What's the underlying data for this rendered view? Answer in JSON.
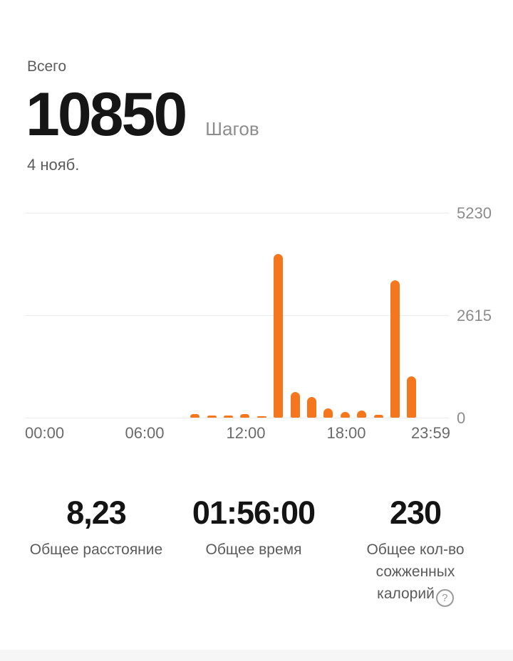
{
  "header": {
    "total_label": "Всего",
    "total_value": "10850",
    "unit": "Шагов",
    "date": "4 нояб."
  },
  "chart_data": {
    "type": "bar",
    "title": "",
    "xlabel": "",
    "ylabel": "",
    "x": [
      0,
      1,
      2,
      3,
      4,
      5,
      6,
      7,
      8,
      9,
      10,
      11,
      12,
      13,
      14,
      15,
      16,
      17,
      18,
      19,
      20,
      21,
      22,
      23
    ],
    "values": [
      0,
      0,
      0,
      0,
      0,
      0,
      0,
      0,
      0,
      90,
      55,
      55,
      90,
      35,
      4170,
      650,
      525,
      235,
      145,
      180,
      70,
      3500,
      1050,
      0
    ],
    "xticks": [
      "00:00",
      "06:00",
      "12:00",
      "18:00",
      "23:59"
    ],
    "yticks": [
      0,
      2615,
      5230
    ],
    "ylim": [
      0,
      5230
    ],
    "grid": true,
    "legend": false,
    "bar_color": "#F4771E"
  },
  "stats": [
    {
      "value": "8,23",
      "label": "Общее расстояние"
    },
    {
      "value": "01:56:00",
      "label": "Общее время"
    },
    {
      "value": "230",
      "label": "Общее кол-во сожженных калорий",
      "help_icon": "?"
    }
  ]
}
